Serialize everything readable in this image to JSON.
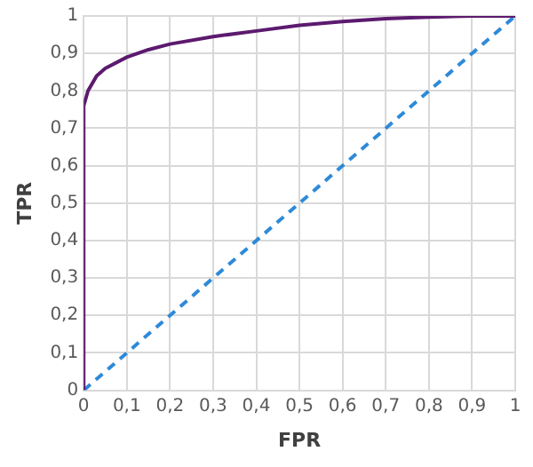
{
  "chart_data": {
    "type": "line",
    "xlabel": "FPR",
    "ylabel": "TPR",
    "series": [
      {
        "color": "#5c1a6e",
        "line_style": "solid",
        "x": [
          0,
          0,
          0.01,
          0.03,
          0.05,
          0.1,
          0.15,
          0.2,
          0.3,
          0.4,
          0.5,
          0.6,
          0.7,
          0.8,
          0.9,
          1
        ],
        "values": [
          0,
          0.76,
          0.8,
          0.84,
          0.86,
          0.89,
          0.91,
          0.925,
          0.945,
          0.96,
          0.975,
          0.985,
          0.993,
          0.997,
          1,
          1
        ]
      },
      {
        "color": "#2e8ad8",
        "line_style": "dashed",
        "x": [
          0,
          1
        ],
        "values": [
          0,
          1
        ]
      }
    ],
    "xlim": [
      0,
      1
    ],
    "ylim": [
      0,
      1
    ],
    "xticks": [
      0,
      {
        "value": 0.1,
        "label": "0,1"
      },
      {
        "value": 0.2,
        "label": "0,2"
      },
      {
        "value": 0.3,
        "label": "0,3"
      },
      {
        "value": 0.4,
        "label": "0,4"
      },
      {
        "value": 0.5,
        "label": "0,5"
      },
      {
        "value": 0.6,
        "label": "0,6"
      },
      {
        "value": 0.7,
        "label": "0,7"
      },
      {
        "value": 0.8,
        "label": "0,8"
      },
      {
        "value": 0.9,
        "label": "0,9"
      },
      1
    ],
    "yticks": [
      0,
      {
        "value": 0.1,
        "label": "0,1"
      },
      {
        "value": 0.2,
        "label": "0,2"
      },
      {
        "value": 0.3,
        "label": "0,3"
      },
      {
        "value": 0.4,
        "label": "0,4"
      },
      {
        "value": 0.5,
        "label": "0,5"
      },
      {
        "value": 0.6,
        "label": "0,6"
      },
      {
        "value": 0.7,
        "label": "0,7"
      },
      {
        "value": 0.8,
        "label": "0,8"
      },
      {
        "value": 0.9,
        "label": "0,9"
      },
      1
    ],
    "grid": true,
    "legend": false,
    "marker": "none"
  }
}
